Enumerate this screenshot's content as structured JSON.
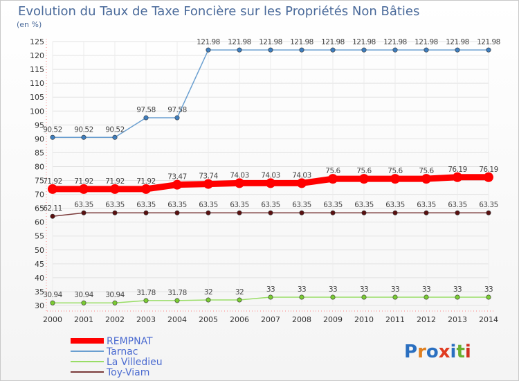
{
  "chart_data": {
    "type": "line",
    "title": "Evolution du Taux de Taxe Foncière sur les Propriétés Non Bâties",
    "unit_label": "(en %)",
    "xlabel": "",
    "ylabel": "",
    "ylim": [
      30,
      125
    ],
    "y_ticks": [
      30,
      35,
      40,
      45,
      50,
      55,
      60,
      65,
      70,
      75,
      80,
      85,
      90,
      95,
      100,
      105,
      110,
      115,
      120,
      125
    ],
    "x": [
      "2000",
      "2001",
      "2002",
      "2003",
      "2004",
      "2005",
      "2006",
      "2007",
      "2008",
      "2009",
      "2010",
      "2011",
      "2012",
      "2013",
      "2014"
    ],
    "series": [
      {
        "name": "REMPNAT",
        "color": "#ff0000",
        "marker_color": "#ff0000",
        "values": [
          71.92,
          71.92,
          71.92,
          71.92,
          73.47,
          73.74,
          74.03,
          74.03,
          74.03,
          75.6,
          75.6,
          75.6,
          75.6,
          76.19,
          76.19
        ],
        "labels": [
          "71.92",
          "71.92",
          "71.92",
          "71.92",
          "73.47",
          "73.74",
          "74.03",
          "74.03",
          "74.03",
          "75.6",
          "75.6",
          "75.6",
          "75.6",
          "76.19",
          "76.19"
        ]
      },
      {
        "name": "Tarnac",
        "color": "#6a9fd0",
        "marker_color": "#3f7fc0",
        "values": [
          90.52,
          90.52,
          90.52,
          97.58,
          97.58,
          121.98,
          121.98,
          121.98,
          121.98,
          121.98,
          121.98,
          121.98,
          121.98,
          121.98,
          121.98
        ],
        "labels": [
          "90.52",
          "90.52",
          "90.52",
          "97.58",
          "97.58",
          "121.98",
          "121.98",
          "121.98",
          "121.98",
          "121.98",
          "121.98",
          "121.98",
          "121.98",
          "121.98",
          "121.98"
        ]
      },
      {
        "name": "La Villedieu",
        "color": "#99dd66",
        "marker_color": "#7acc33",
        "values": [
          30.94,
          30.94,
          30.94,
          31.78,
          31.78,
          32,
          32,
          33,
          33,
          33,
          33,
          33,
          33,
          33,
          33
        ],
        "labels": [
          "30.94",
          "30.94",
          "30.94",
          "31.78",
          "31.78",
          "32",
          "32",
          "33",
          "33",
          "33",
          "33",
          "33",
          "33",
          "33",
          "33"
        ]
      },
      {
        "name": "Toy-Viam",
        "color": "#7a3a3a",
        "marker_color": "#5a1010",
        "values": [
          62.11,
          63.35,
          63.35,
          63.35,
          63.35,
          63.35,
          63.35,
          63.35,
          63.35,
          63.35,
          63.35,
          63.35,
          63.35,
          63.35,
          63.35
        ],
        "labels": [
          "62.11",
          "63.35",
          "63.35",
          "63.35",
          "63.35",
          "63.35",
          "63.35",
          "63.35",
          "63.35",
          "63.35",
          "63.35",
          "63.35",
          "63.35",
          "63.35",
          "63.35"
        ]
      }
    ],
    "legend": [
      "REMPNAT",
      "Tarnac",
      "La Villedieu",
      "Toy-Viam"
    ],
    "legend_position": "bottom-left",
    "grid": true
  },
  "logo": {
    "text": "Proxiti"
  }
}
